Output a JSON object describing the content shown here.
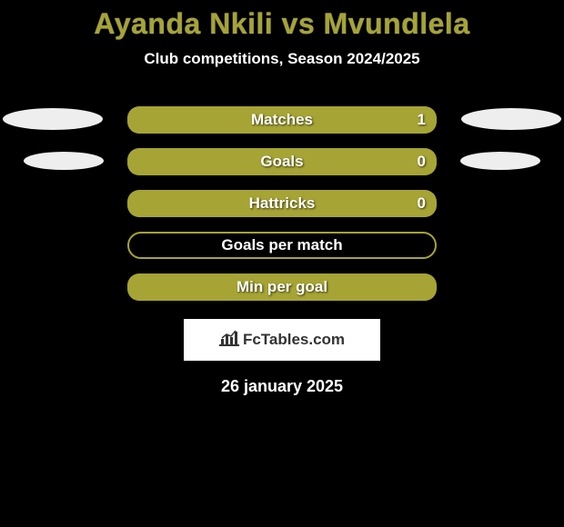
{
  "title": "Ayanda Nkili vs Mvundlela",
  "title_color": "#a6a434",
  "subtitle": "Club competitions, Season 2024/2025",
  "background_color": "#000000",
  "text_color": "#ffffff",
  "ellipse_color": "#eeeeee",
  "logo_text": "FcTables.com",
  "logo_bg": "#ffffff",
  "date": "26 january 2025",
  "rows": [
    {
      "label": "Matches",
      "value_right": "1",
      "fill_pct": 100,
      "fill_side": "left",
      "fill_color": "#a6a434",
      "border_color": "#a6a434",
      "show_left_ellipse": true,
      "show_right_ellipse": true,
      "ellipse_size": "big"
    },
    {
      "label": "Goals",
      "value_right": "0",
      "fill_pct": 100,
      "fill_side": "left",
      "fill_color": "#a6a434",
      "border_color": "#a6a434",
      "show_left_ellipse": true,
      "show_right_ellipse": true,
      "ellipse_size": "small"
    },
    {
      "label": "Hattricks",
      "value_right": "0",
      "fill_pct": 100,
      "fill_side": "left",
      "fill_color": "#a6a434",
      "border_color": "#a6a434",
      "show_left_ellipse": false,
      "show_right_ellipse": false,
      "ellipse_size": "big"
    },
    {
      "label": "Goals per match",
      "value_right": "",
      "fill_pct": 0,
      "fill_side": "left",
      "fill_color": "#a6a434",
      "border_color": "#a6a434",
      "show_left_ellipse": false,
      "show_right_ellipse": false,
      "ellipse_size": "big"
    },
    {
      "label": "Min per goal",
      "value_right": "",
      "fill_pct": 100,
      "fill_side": "left",
      "fill_color": "#a6a434",
      "border_color": "#a6a434",
      "show_left_ellipse": false,
      "show_right_ellipse": false,
      "ellipse_size": "big"
    }
  ]
}
